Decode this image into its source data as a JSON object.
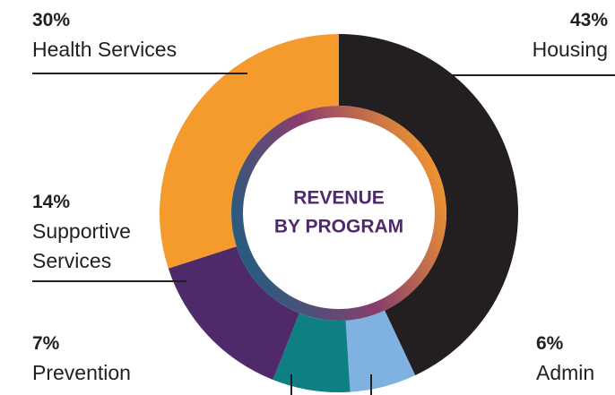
{
  "chart_data": {
    "type": "donut",
    "title": [
      "REVENUE",
      "BY PROGRAM"
    ],
    "categories": [
      "Housing",
      "Admin",
      "Prevention",
      "Supportive Services",
      "Health Services"
    ],
    "values": [
      43,
      6,
      7,
      14,
      30
    ],
    "value_labels": [
      "43%",
      "6%",
      "7%",
      "14%",
      "30%"
    ],
    "colors": [
      "#231f20",
      "#7fb2e0",
      "#0e7f82",
      "#4e2a6b",
      "#f59a2c"
    ]
  }
}
